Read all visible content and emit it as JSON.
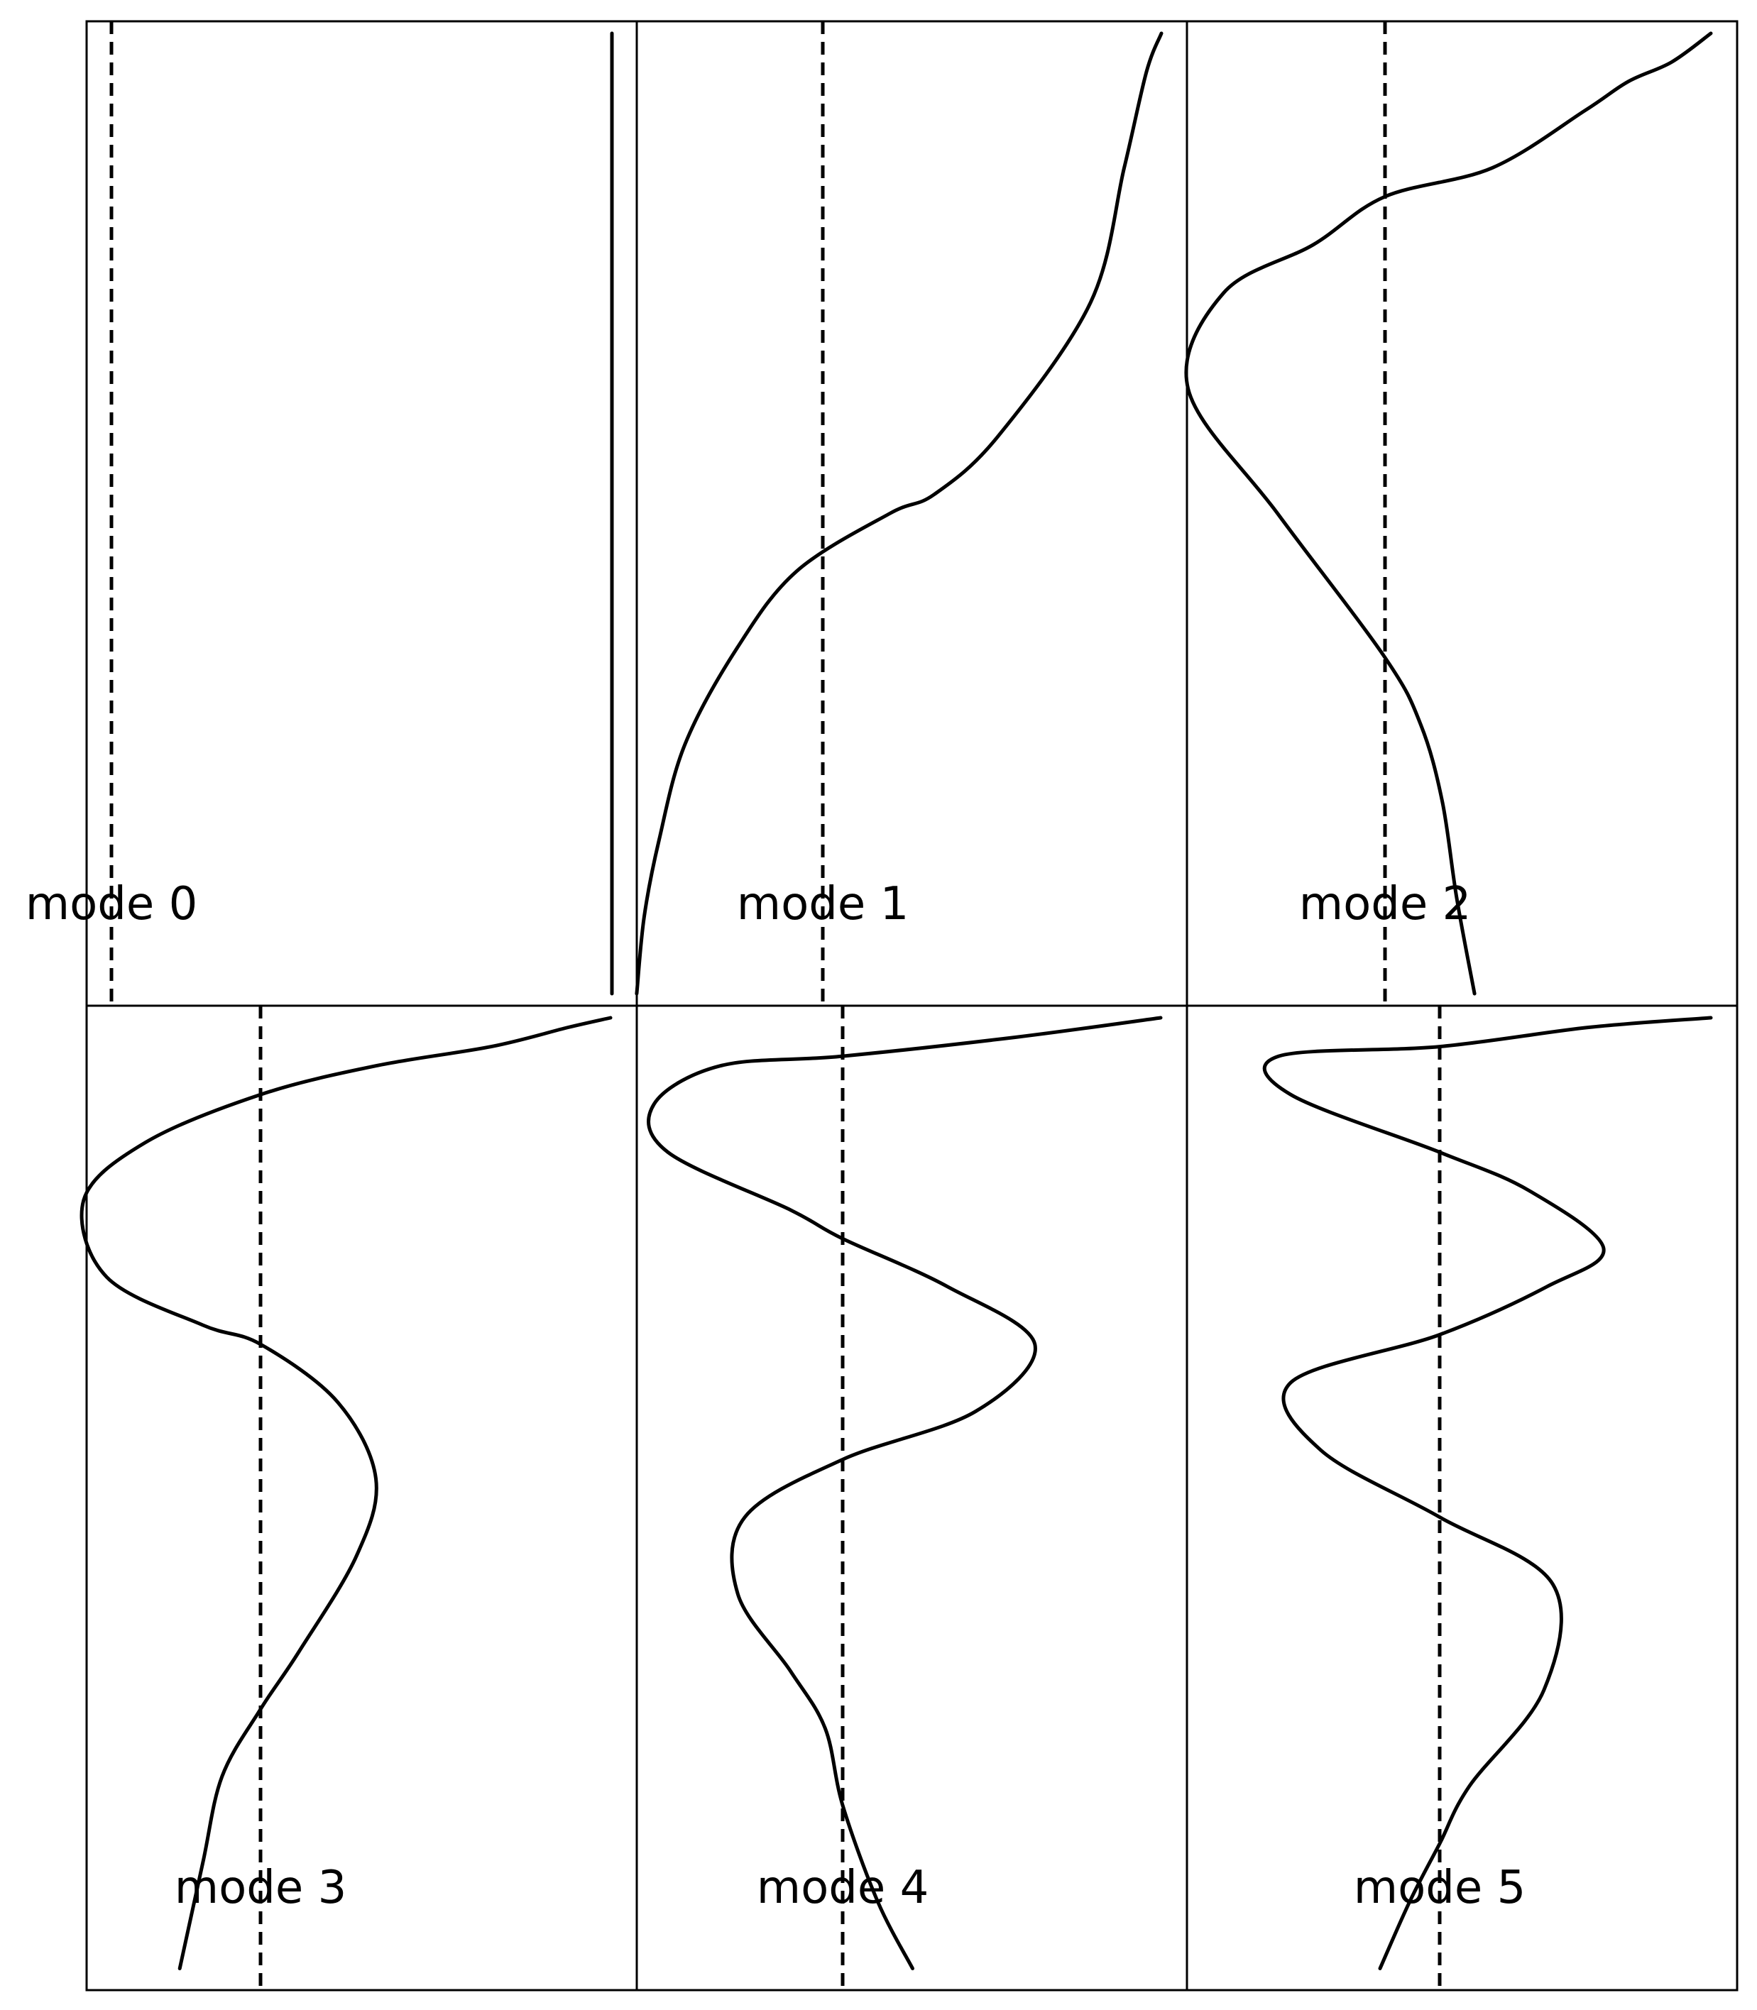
{
  "chart_data": {
    "type": "line",
    "layout": "2 rows x 3 columns of panels",
    "grid": false,
    "axes_visible": false,
    "orientation": "vertical profiles: amplitude on horizontal axis, position along vertical axis",
    "panels": [
      {
        "label": "mode 0",
        "reference_line": "dashed vertical line at zero amplitude",
        "points": [
          [
            0.91,
            0.0
          ],
          [
            0.91,
            1.0
          ]
        ]
      },
      {
        "label": "mode 1",
        "reference_line": "dashed vertical line at zero amplitude",
        "points": [
          [
            0.91,
            0.0
          ],
          [
            0.87,
            0.04
          ],
          [
            0.81,
            0.14
          ],
          [
            0.72,
            0.28
          ],
          [
            0.47,
            0.42
          ],
          [
            0.3,
            0.48
          ],
          [
            0.18,
            0.5
          ],
          [
            -0.07,
            0.56
          ],
          [
            -0.23,
            0.64
          ],
          [
            -0.37,
            0.74
          ],
          [
            -0.44,
            0.84
          ],
          [
            -0.48,
            0.92
          ],
          [
            -0.5,
            1.0
          ]
        ]
      },
      {
        "label": "mode 2",
        "reference_line": "dashed vertical line at zero amplitude",
        "points": [
          [
            0.91,
            0.0
          ],
          [
            0.8,
            0.03
          ],
          [
            0.68,
            0.05
          ],
          [
            0.56,
            0.08
          ],
          [
            0.3,
            0.14
          ],
          [
            0.0,
            0.17
          ],
          [
            -0.2,
            0.22
          ],
          [
            -0.45,
            0.27
          ],
          [
            -0.55,
            0.37
          ],
          [
            -0.3,
            0.5
          ],
          [
            0.0,
            0.65
          ],
          [
            0.1,
            0.72
          ],
          [
            0.16,
            0.8
          ],
          [
            0.2,
            0.9
          ],
          [
            0.25,
            1.0
          ]
        ]
      },
      {
        "label": "mode 3",
        "reference_line": "dashed vertical line at zero amplitude",
        "points": [
          [
            0.91,
            0.0
          ],
          [
            0.8,
            0.01
          ],
          [
            0.6,
            0.03
          ],
          [
            0.3,
            0.05
          ],
          [
            0.0,
            0.08
          ],
          [
            -0.3,
            0.13
          ],
          [
            -0.46,
            0.19
          ],
          [
            -0.4,
            0.27
          ],
          [
            -0.15,
            0.32
          ],
          [
            0.0,
            0.34
          ],
          [
            0.2,
            0.4
          ],
          [
            0.3,
            0.48
          ],
          [
            0.25,
            0.56
          ],
          [
            0.1,
            0.66
          ],
          [
            0.0,
            0.72
          ],
          [
            -0.1,
            0.79
          ],
          [
            -0.15,
            0.88
          ],
          [
            -0.21,
            0.99
          ]
        ]
      },
      {
        "label": "mode 4",
        "reference_line": "dashed vertical line at zero amplitude",
        "points": [
          [
            0.91,
            0.0
          ],
          [
            0.5,
            0.02
          ],
          [
            0.0,
            0.04
          ],
          [
            -0.35,
            0.05
          ],
          [
            -0.54,
            0.09
          ],
          [
            -0.5,
            0.14
          ],
          [
            -0.15,
            0.2
          ],
          [
            0.0,
            0.23
          ],
          [
            0.3,
            0.28
          ],
          [
            0.55,
            0.34
          ],
          [
            0.38,
            0.41
          ],
          [
            0.0,
            0.46
          ],
          [
            -0.28,
            0.52
          ],
          [
            -0.3,
            0.6
          ],
          [
            -0.15,
            0.68
          ],
          [
            -0.05,
            0.74
          ],
          [
            0.0,
            0.82
          ],
          [
            0.1,
            0.92
          ],
          [
            0.2,
            0.99
          ]
        ]
      },
      {
        "label": "mode 5",
        "reference_line": "dashed vertical line at zero amplitude",
        "points": [
          [
            0.91,
            0.0
          ],
          [
            0.5,
            0.01
          ],
          [
            0.0,
            0.03
          ],
          [
            -0.54,
            0.04
          ],
          [
            -0.5,
            0.08
          ],
          [
            0.0,
            0.14
          ],
          [
            0.3,
            0.18
          ],
          [
            0.55,
            0.24
          ],
          [
            0.36,
            0.28
          ],
          [
            0.0,
            0.33
          ],
          [
            -0.5,
            0.38
          ],
          [
            -0.4,
            0.45
          ],
          [
            0.0,
            0.52
          ],
          [
            0.38,
            0.59
          ],
          [
            0.35,
            0.7
          ],
          [
            0.1,
            0.8
          ],
          [
            0.0,
            0.86
          ],
          [
            -0.1,
            0.92
          ],
          [
            -0.2,
            0.99
          ]
        ]
      }
    ]
  }
}
